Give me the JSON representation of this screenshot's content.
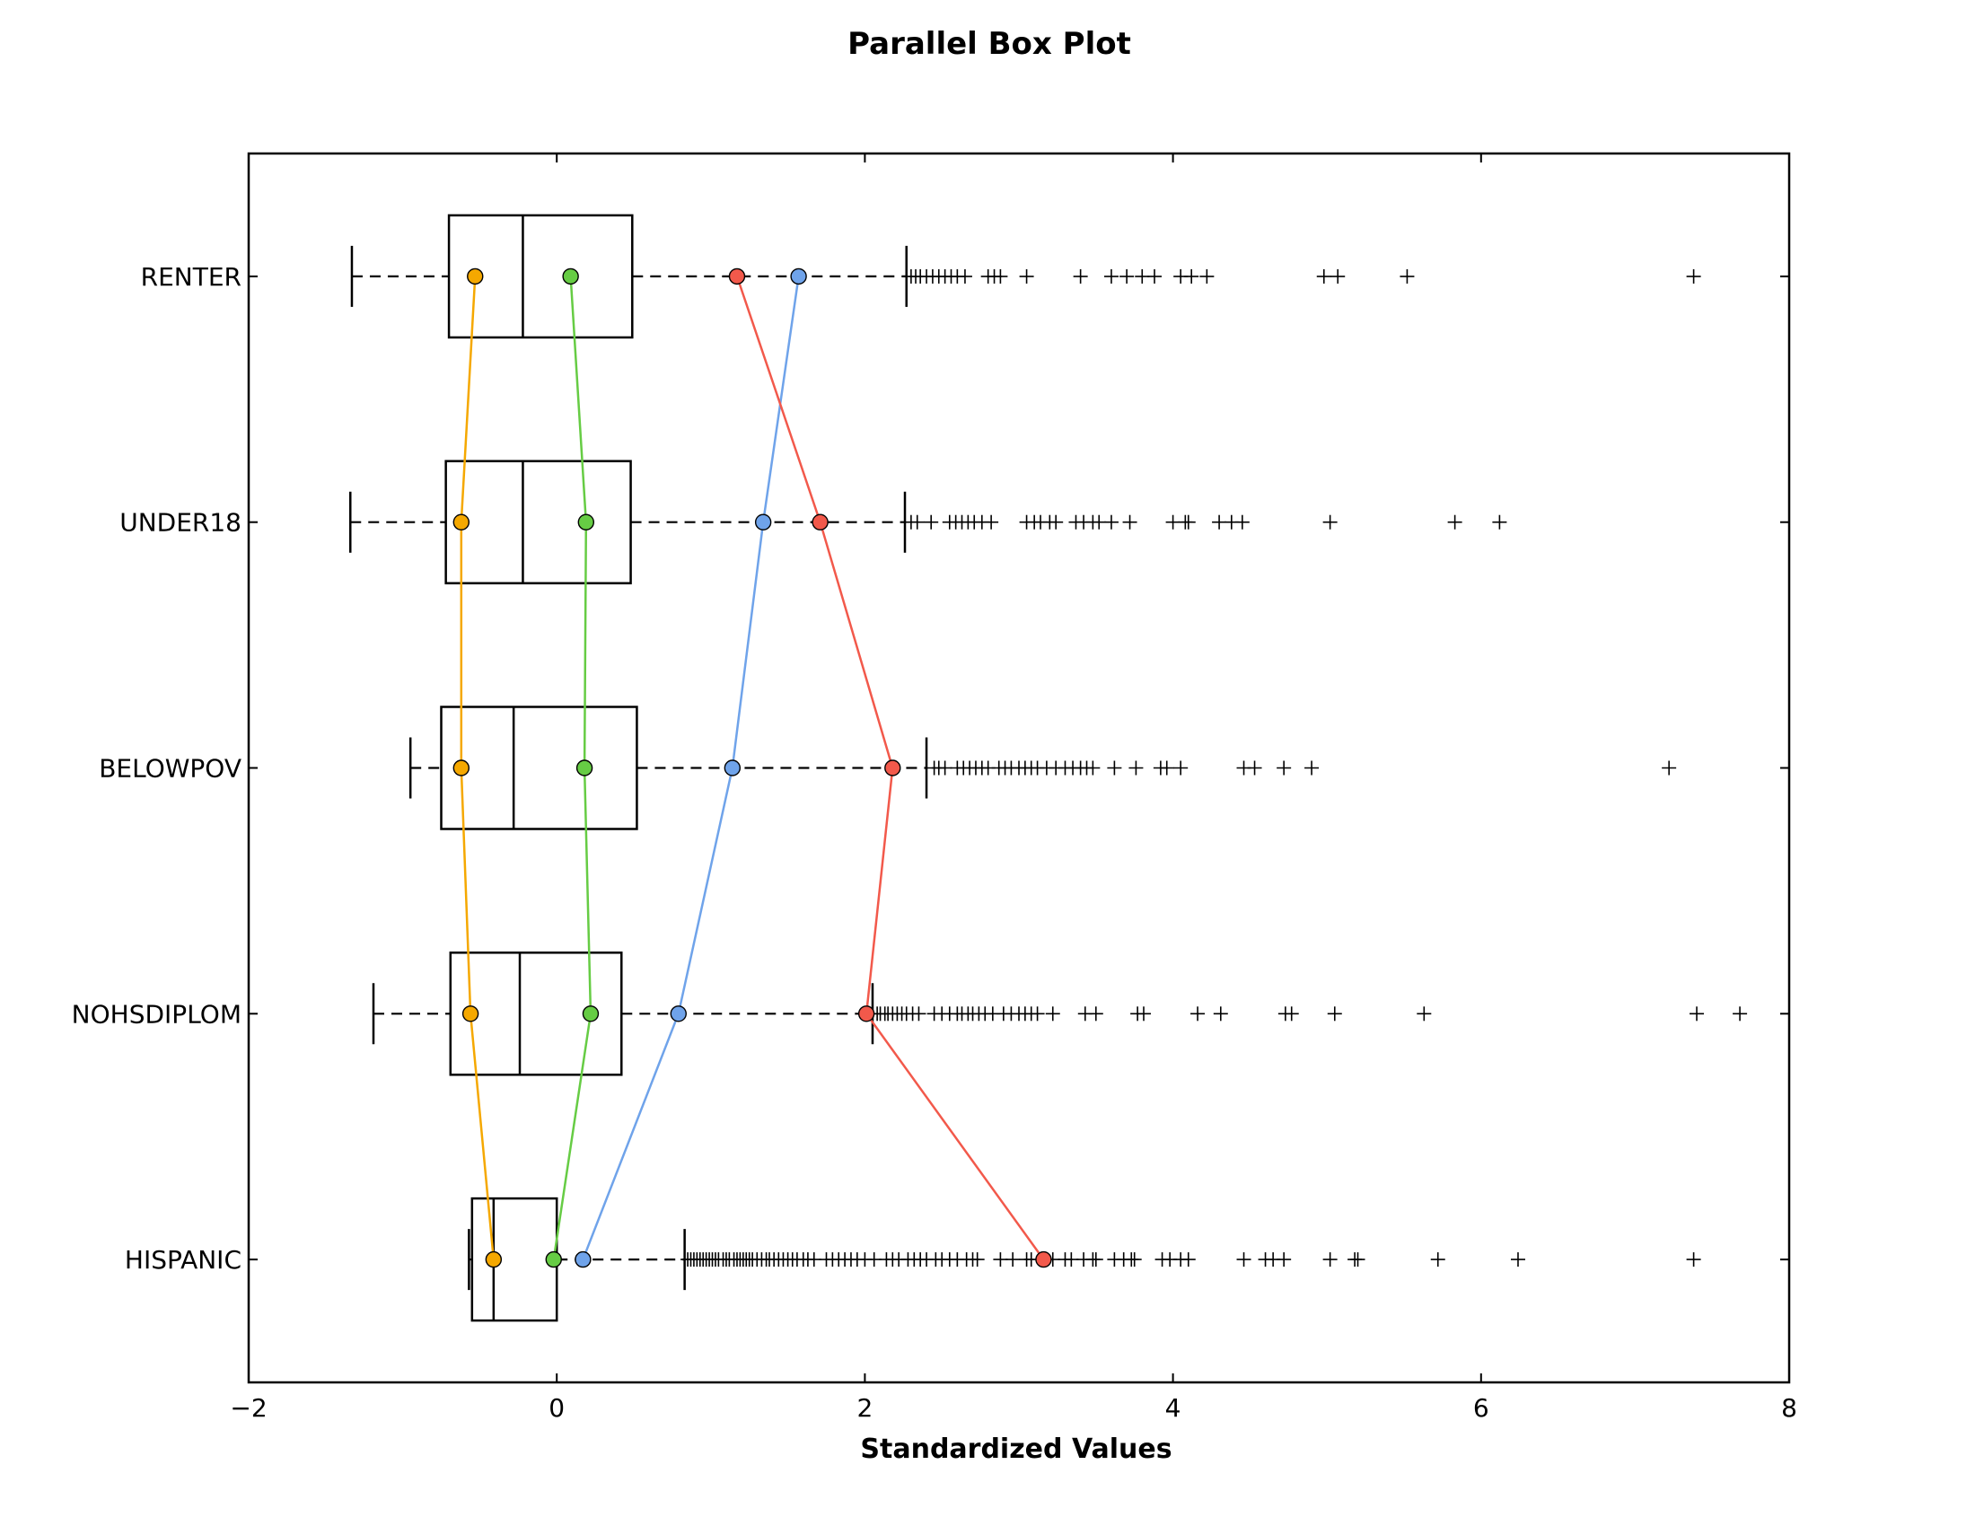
{
  "chart_data": {
    "type": "boxplot",
    "orientation": "horizontal",
    "title": "Parallel Box Plot",
    "xlabel": "Standardized Values",
    "ylabel": "",
    "xlim": [
      -2,
      8
    ],
    "xticks": [
      -2,
      0,
      2,
      4,
      6,
      8
    ],
    "xtick_labels": [
      "−2",
      "0",
      "2",
      "4",
      "6",
      "8"
    ],
    "grid": false,
    "categories": [
      "HISPANIC",
      "NOHSDIPLOM",
      "BELOWPOV",
      "UNDER18",
      "RENTER"
    ],
    "boxes": [
      {
        "name": "HISPANIC",
        "whisker_low": -0.57,
        "q1": -0.55,
        "median": -0.41,
        "q3": 0.0,
        "whisker_high": 0.83,
        "outliers": [
          0.85,
          0.87,
          0.89,
          0.91,
          0.93,
          0.95,
          0.97,
          0.99,
          1.01,
          1.03,
          1.05,
          1.08,
          1.1,
          1.12,
          1.15,
          1.17,
          1.19,
          1.21,
          1.23,
          1.25,
          1.27,
          1.3,
          1.33,
          1.36,
          1.38,
          1.41,
          1.44,
          1.47,
          1.5,
          1.53,
          1.56,
          1.6,
          1.63,
          1.67,
          1.75,
          1.79,
          1.83,
          1.87,
          1.91,
          1.95,
          2.0,
          2.06,
          2.14,
          2.18,
          2.22,
          2.28,
          2.32,
          2.36,
          2.4,
          2.46,
          2.5,
          2.55,
          2.6,
          2.66,
          2.7,
          2.73,
          2.88,
          2.96,
          3.05,
          3.08,
          3.15,
          3.22,
          3.3,
          3.34,
          3.42,
          3.48,
          3.5,
          3.62,
          3.68,
          3.73,
          3.75,
          3.93,
          3.98,
          4.05,
          4.1,
          4.46,
          4.6,
          4.65,
          4.72,
          5.02,
          5.18,
          5.2,
          5.72,
          6.24,
          7.38
        ]
      },
      {
        "name": "NOHSDIPLOM",
        "whisker_low": -1.19,
        "q1": -0.69,
        "median": -0.24,
        "q3": 0.42,
        "whisker_high": 2.05,
        "outliers": [
          2.08,
          2.1,
          2.13,
          2.15,
          2.18,
          2.21,
          2.24,
          2.27,
          2.31,
          2.35,
          2.45,
          2.5,
          2.55,
          2.6,
          2.63,
          2.67,
          2.7,
          2.74,
          2.78,
          2.83,
          2.9,
          2.95,
          3.0,
          3.04,
          3.08,
          3.12,
          3.22,
          3.43,
          3.5,
          3.77,
          3.81,
          4.16,
          4.31,
          4.73,
          4.77,
          5.05,
          5.63,
          7.4,
          7.68
        ]
      },
      {
        "name": "BELOWPOV",
        "whisker_low": -0.95,
        "q1": -0.75,
        "median": -0.28,
        "q3": 0.52,
        "whisker_high": 2.4,
        "outliers": [
          2.45,
          2.48,
          2.52,
          2.6,
          2.64,
          2.68,
          2.72,
          2.76,
          2.8,
          2.87,
          2.91,
          2.95,
          3.0,
          3.04,
          3.08,
          3.12,
          3.18,
          3.24,
          3.3,
          3.35,
          3.4,
          3.44,
          3.48,
          3.62,
          3.76,
          3.92,
          3.96,
          4.05,
          4.46,
          4.53,
          4.72,
          4.9,
          7.22
        ]
      },
      {
        "name": "UNDER18",
        "whisker_low": -1.34,
        "q1": -0.72,
        "median": -0.22,
        "q3": 0.48,
        "whisker_high": 2.26,
        "outliers": [
          2.3,
          2.34,
          2.43,
          2.55,
          2.59,
          2.63,
          2.67,
          2.71,
          2.76,
          2.82,
          3.05,
          3.1,
          3.14,
          3.2,
          3.24,
          3.37,
          3.42,
          3.48,
          3.52,
          3.6,
          3.72,
          4.0,
          4.08,
          4.1,
          4.3,
          4.38,
          4.45,
          5.02,
          5.83,
          6.12
        ]
      },
      {
        "name": "RENTER",
        "whisker_low": -1.33,
        "q1": -0.7,
        "median": -0.22,
        "q3": 0.49,
        "whisker_high": 2.27,
        "outliers": [
          2.3,
          2.33,
          2.36,
          2.4,
          2.44,
          2.48,
          2.52,
          2.56,
          2.6,
          2.65,
          2.8,
          2.84,
          2.88,
          3.05,
          3.4,
          3.6,
          3.7,
          3.8,
          3.88,
          4.05,
          4.12,
          4.22,
          4.98,
          5.07,
          5.52,
          7.38
        ]
      }
    ],
    "series": [
      {
        "color": "#f5a800",
        "values": [
          -0.41,
          -0.56,
          -0.62,
          -0.62,
          -0.53
        ]
      },
      {
        "color": "#66cc44",
        "values": [
          -0.02,
          0.22,
          0.18,
          0.19,
          0.09
        ]
      },
      {
        "color": "#6fa3ea",
        "values": [
          0.17,
          0.79,
          1.14,
          1.34,
          1.57
        ]
      },
      {
        "color": "#f2594b",
        "values": [
          3.16,
          2.01,
          2.18,
          1.71,
          1.17
        ]
      }
    ]
  }
}
